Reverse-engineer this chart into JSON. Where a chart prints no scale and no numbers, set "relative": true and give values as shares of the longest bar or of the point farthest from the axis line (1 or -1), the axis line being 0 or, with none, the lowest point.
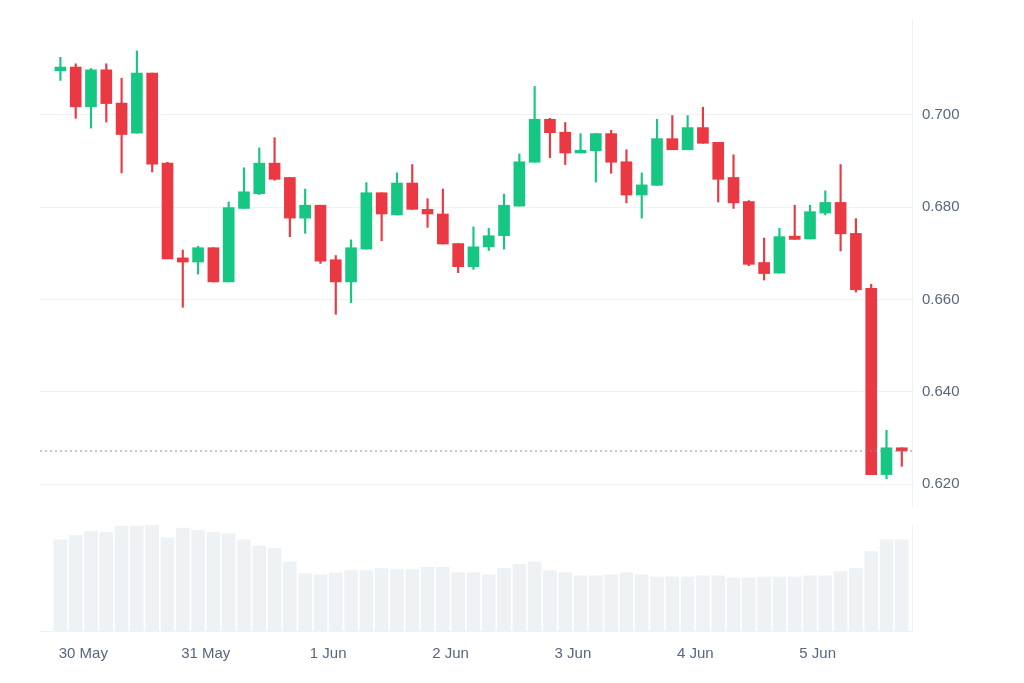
{
  "chart_data": [
    {
      "type": "candlestick",
      "x": [
        "--05-29T19:30",
        "--05-29T22:30",
        "--05-30T01:30",
        "--05-30T04:30",
        "--05-30T07:30",
        "--05-30T10:30",
        "--05-30T13:30",
        "--05-30T16:30",
        "--05-30T19:30",
        "--05-30T22:30",
        "--05-31T01:30",
        "--05-31T04:30",
        "--05-31T07:30",
        "--05-31T10:30",
        "--05-31T13:30",
        "--05-31T16:30",
        "--05-31T19:30",
        "--05-31T22:30",
        "--06-01T01:30",
        "--06-01T04:30",
        "--06-01T07:30",
        "--06-01T10:30",
        "--06-01T13:30",
        "--06-01T16:30",
        "--06-01T19:30",
        "--06-01T22:30",
        "--06-02T01:30",
        "--06-02T04:30",
        "--06-02T07:30",
        "--06-02T10:30",
        "--06-02T13:30",
        "--06-02T16:30",
        "--06-02T19:30",
        "--06-02T22:30",
        "--06-03T01:30",
        "--06-03T04:30",
        "--06-03T07:30",
        "--06-03T10:30",
        "--06-03T13:30",
        "--06-03T16:30",
        "--06-03T19:30",
        "--06-03T22:30",
        "--06-04T01:30",
        "--06-04T04:30",
        "--06-04T07:30",
        "--06-04T10:30",
        "--06-04T13:30",
        "--06-04T16:30",
        "--06-04T19:30",
        "--06-04T22:30",
        "--06-05T01:30",
        "--06-05T04:30",
        "--06-05T07:30",
        "--06-05T10:30",
        "--06-05T13:30",
        "--06-05T16:30"
      ],
      "ohlc": [
        [
          0.7095,
          0.7124,
          0.7074,
          0.7103
        ],
        [
          0.7103,
          0.711,
          0.6992,
          0.7017
        ],
        [
          0.7017,
          0.71,
          0.6971,
          0.7097
        ],
        [
          0.7097,
          0.711,
          0.6984,
          0.7024
        ],
        [
          0.7025,
          0.7079,
          0.6874,
          0.6957
        ],
        [
          0.696,
          0.7138,
          0.696,
          0.709
        ],
        [
          0.709,
          0.709,
          0.6876,
          0.6893
        ],
        [
          0.6895,
          0.6897,
          0.6688,
          0.6688
        ],
        [
          0.669,
          0.6707,
          0.6583,
          0.6681
        ],
        [
          0.6681,
          0.6715,
          0.6655,
          0.6712
        ],
        [
          0.6712,
          0.6712,
          0.6638,
          0.6638
        ],
        [
          0.6638,
          0.6811,
          0.6638,
          0.6799
        ],
        [
          0.6797,
          0.6885,
          0.6797,
          0.6833
        ],
        [
          0.6829,
          0.6928,
          0.6827,
          0.6895
        ],
        [
          0.6895,
          0.695,
          0.6858,
          0.686
        ],
        [
          0.6864,
          0.6864,
          0.6736,
          0.6776
        ],
        [
          0.6776,
          0.6839,
          0.6743,
          0.6804
        ],
        [
          0.6804,
          0.6804,
          0.6678,
          0.6683
        ],
        [
          0.6686,
          0.6695,
          0.6568,
          0.6638
        ],
        [
          0.6638,
          0.6729,
          0.6593,
          0.6712
        ],
        [
          0.6709,
          0.6853,
          0.6709,
          0.6831
        ],
        [
          0.6831,
          0.6831,
          0.6727,
          0.6785
        ],
        [
          0.6783,
          0.6874,
          0.6783,
          0.6852
        ],
        [
          0.6852,
          0.6892,
          0.6795,
          0.6795
        ],
        [
          0.6795,
          0.6818,
          0.6756,
          0.6785
        ],
        [
          0.6785,
          0.6839,
          0.672,
          0.672
        ],
        [
          0.6721,
          0.6721,
          0.6658,
          0.6671
        ],
        [
          0.6671,
          0.6757,
          0.6665,
          0.6714
        ],
        [
          0.6714,
          0.6754,
          0.6706,
          0.6738
        ],
        [
          0.6738,
          0.6828,
          0.6709,
          0.6804
        ],
        [
          0.6802,
          0.6915,
          0.6802,
          0.6898
        ],
        [
          0.6897,
          0.7061,
          0.6897,
          0.699
        ],
        [
          0.699,
          0.6992,
          0.6907,
          0.6961
        ],
        [
          0.6962,
          0.6983,
          0.6892,
          0.6917
        ],
        [
          0.6917,
          0.6959,
          0.6917,
          0.6923
        ],
        [
          0.6922,
          0.6959,
          0.6854,
          0.6959
        ],
        [
          0.6959,
          0.6966,
          0.6873,
          0.6897
        ],
        [
          0.6898,
          0.6924,
          0.6809,
          0.6826
        ],
        [
          0.6826,
          0.6874,
          0.6776,
          0.6848
        ],
        [
          0.6847,
          0.699,
          0.6847,
          0.6948
        ],
        [
          0.6948,
          0.6998,
          0.6924,
          0.6924
        ],
        [
          0.6924,
          0.6998,
          0.6924,
          0.6972
        ],
        [
          0.6972,
          0.7016,
          0.6938,
          0.6938
        ],
        [
          0.694,
          0.694,
          0.6811,
          0.686
        ],
        [
          0.6864,
          0.6913,
          0.6797,
          0.6809
        ],
        [
          0.6812,
          0.6814,
          0.6673,
          0.6676
        ],
        [
          0.668,
          0.6733,
          0.6642,
          0.6656
        ],
        [
          0.6657,
          0.6754,
          0.6657,
          0.6736
        ],
        [
          0.6737,
          0.6804,
          0.673,
          0.673
        ],
        [
          0.6731,
          0.6804,
          0.6731,
          0.679
        ],
        [
          0.6787,
          0.6835,
          0.6783,
          0.681
        ],
        [
          0.681,
          0.6892,
          0.6705,
          0.6742
        ],
        [
          0.6743,
          0.6775,
          0.6616,
          0.6621
        ],
        [
          0.6624,
          0.6633,
          0.6221,
          0.6221
        ],
        [
          0.6221,
          0.6317,
          0.6212,
          0.6279
        ],
        [
          0.6279,
          0.6279,
          0.6239,
          0.6272
        ]
      ],
      "colors": [
        "#16c784",
        "#ea3943",
        "#16c784",
        "#ea3943",
        "#ea3943",
        "#16c784",
        "#ea3943",
        "#ea3943",
        "#ea3943",
        "#16c784",
        "#ea3943",
        "#16c784",
        "#16c784",
        "#16c784",
        "#ea3943",
        "#ea3943",
        "#16c784",
        "#ea3943",
        "#ea3943",
        "#16c784",
        "#16c784",
        "#ea3943",
        "#16c784",
        "#ea3943",
        "#ea3943",
        "#ea3943",
        "#ea3943",
        "#16c784",
        "#16c784",
        "#16c784",
        "#16c784",
        "#16c784",
        "#ea3943",
        "#ea3943",
        "#16c784",
        "#16c784",
        "#ea3943",
        "#ea3943",
        "#16c784",
        "#16c784",
        "#ea3943",
        "#16c784",
        "#ea3943",
        "#ea3943",
        "#ea3943",
        "#ea3943",
        "#ea3943",
        "#16c784",
        "#ea3943",
        "#16c784",
        "#16c784",
        "#ea3943",
        "#ea3943",
        "#ea3943",
        "#16c784",
        "#ea3943"
      ],
      "xlim": [
        "--05-29T15:30",
        "--06-05T18:30"
      ],
      "ylim": [
        0.6153,
        0.7207
      ],
      "yticks": [
        {
          "value": 0.62,
          "label": "0.620"
        },
        {
          "value": 0.64,
          "label": "0.640"
        },
        {
          "value": 0.66,
          "label": "0.660"
        },
        {
          "value": 0.68,
          "label": "0.680"
        },
        {
          "value": 0.7,
          "label": "0.700"
        }
      ],
      "ref_lines": [
        {
          "axis": "y",
          "value": 0.6272,
          "color": "#8a919e",
          "line_style": "dotted"
        }
      ],
      "grid": "y",
      "tick_labels": "y"
    },
    {
      "type": "bar",
      "relative": true,
      "color": "#eff2f5",
      "x": [
        "--05-29T19:30",
        "--05-29T22:30",
        "--05-30T01:30",
        "--05-30T04:30",
        "--05-30T07:30",
        "--05-30T10:30",
        "--05-30T13:30",
        "--05-30T16:30",
        "--05-30T19:30",
        "--05-30T22:30",
        "--05-31T01:30",
        "--05-31T04:30",
        "--05-31T07:30",
        "--05-31T10:30",
        "--05-31T13:30",
        "--05-31T16:30",
        "--05-31T19:30",
        "--05-31T22:30",
        "--06-01T01:30",
        "--06-01T04:30",
        "--06-01T07:30",
        "--06-01T10:30",
        "--06-01T13:30",
        "--06-01T16:30",
        "--06-01T19:30",
        "--06-01T22:30",
        "--06-02T01:30",
        "--06-02T04:30",
        "--06-02T07:30",
        "--06-02T10:30",
        "--06-02T13:30",
        "--06-02T16:30",
        "--06-02T19:30",
        "--06-02T22:30",
        "--06-03T01:30",
        "--06-03T04:30",
        "--06-03T07:30",
        "--06-03T10:30",
        "--06-03T13:30",
        "--06-03T16:30",
        "--06-03T19:30",
        "--06-03T22:30",
        "--06-04T01:30",
        "--06-04T04:30",
        "--06-04T07:30",
        "--06-04T10:30",
        "--06-04T13:30",
        "--06-04T16:30",
        "--06-04T19:30",
        "--06-04T22:30",
        "--06-05T01:30",
        "--06-05T04:30",
        "--06-05T07:30",
        "--06-05T10:30",
        "--06-05T13:30",
        "--06-05T16:30"
      ],
      "values": [
        0.86,
        0.9,
        0.94,
        0.93,
        0.99,
        0.99,
        1,
        0.88,
        0.97,
        0.95,
        0.93,
        0.92,
        0.86,
        0.8,
        0.78,
        0.65,
        0.54,
        0.53,
        0.55,
        0.57,
        0.57,
        0.59,
        0.58,
        0.58,
        0.6,
        0.6,
        0.55,
        0.55,
        0.53,
        0.59,
        0.63,
        0.65,
        0.57,
        0.55,
        0.52,
        0.52,
        0.53,
        0.55,
        0.53,
        0.51,
        0.51,
        0.51,
        0.52,
        0.52,
        0.5,
        0.5,
        0.51,
        0.51,
        0.51,
        0.52,
        0.52,
        0.56,
        0.59,
        0.75,
        0.86,
        0.86
      ],
      "xlim": [
        "--05-29T15:30",
        "--06-05T18:30"
      ],
      "xticks": [
        {
          "value": "--05-30",
          "label": "30 May"
        },
        {
          "value": "--05-31",
          "label": "31 May"
        },
        {
          "value": "--06-01",
          "label": "1 Jun"
        },
        {
          "value": "--06-02",
          "label": "2 Jun"
        },
        {
          "value": "--06-03",
          "label": "3 Jun"
        },
        {
          "value": "--06-04",
          "label": "4 Jun"
        },
        {
          "value": "--06-05",
          "label": "5 Jun"
        }
      ]
    }
  ]
}
